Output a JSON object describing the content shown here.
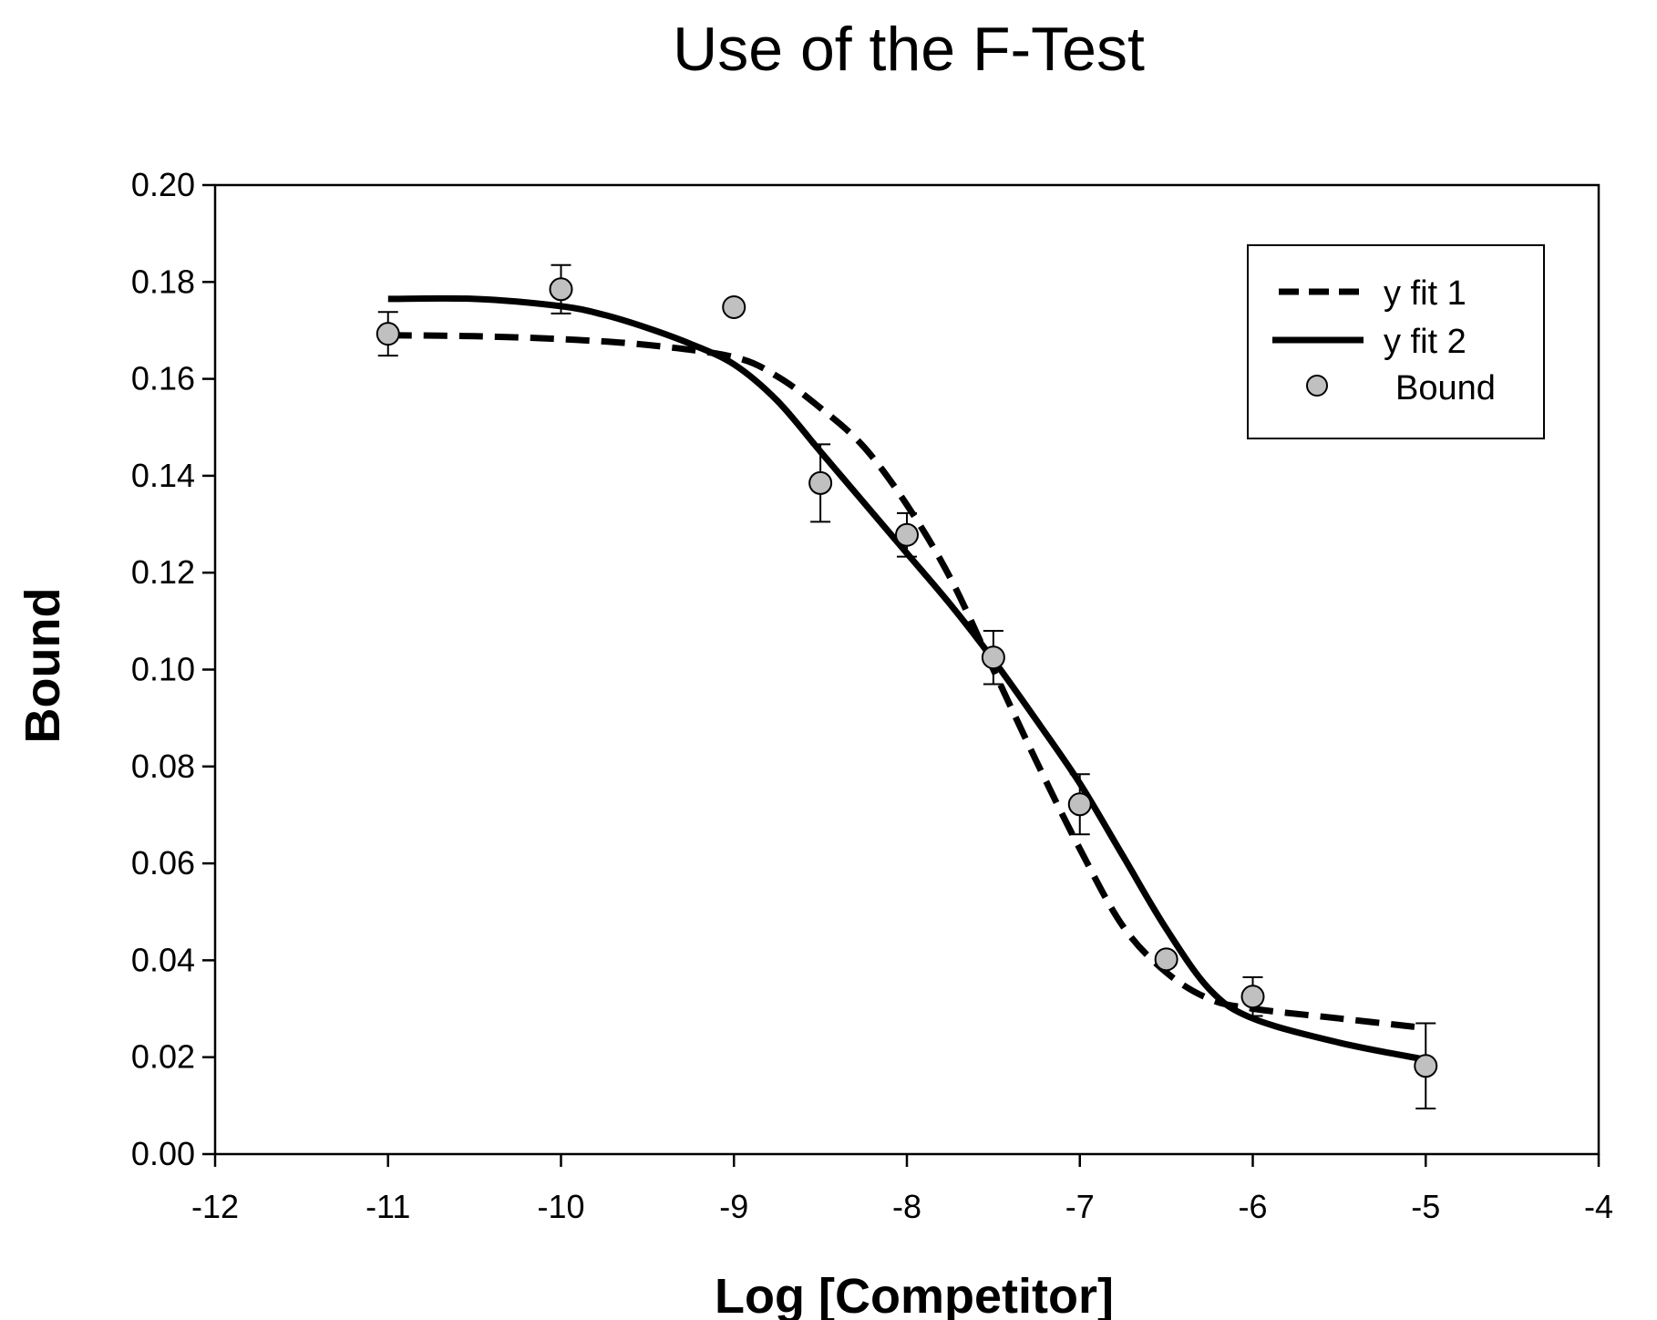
{
  "chart_data": {
    "type": "scatter",
    "title": "Use of the F-Test",
    "xlabel": "Log [Competitor]",
    "ylabel": "Bound",
    "xlim": [
      -12,
      -4
    ],
    "ylim": [
      0.0,
      0.2
    ],
    "x_ticks": [
      "-12",
      "-11",
      "-10",
      "-9",
      "-8",
      "-7",
      "-6",
      "-5",
      "-4"
    ],
    "y_ticks": [
      "0.00",
      "0.02",
      "0.04",
      "0.06",
      "0.08",
      "0.10",
      "0.12",
      "0.14",
      "0.16",
      "0.18",
      "0.20"
    ],
    "grid": false,
    "legend_position": "top-right",
    "series": [
      {
        "name": "y fit 1",
        "kind": "line",
        "style": "dashed",
        "color": "#000000",
        "x": [
          -11,
          -10.5,
          -10,
          -9.5,
          -9,
          -8.75,
          -8.5,
          -8.25,
          -8,
          -7.75,
          -7.5,
          -7.25,
          -7,
          -6.75,
          -6.5,
          -6.25,
          -6,
          -5.5,
          -5
        ],
        "y": [
          0.169,
          0.1688,
          0.1682,
          0.167,
          0.1645,
          0.1605,
          0.154,
          0.146,
          0.134,
          0.119,
          0.1,
          0.081,
          0.063,
          0.047,
          0.0375,
          0.032,
          0.03,
          0.028,
          0.026
        ]
      },
      {
        "name": "y fit 2",
        "kind": "line",
        "style": "solid",
        "color": "#000000",
        "x": [
          -11,
          -10.5,
          -10,
          -9.75,
          -9.5,
          -9.25,
          -9,
          -8.75,
          -8.5,
          -8.25,
          -8,
          -7.75,
          -7.5,
          -7.25,
          -7,
          -6.75,
          -6.5,
          -6.25,
          -6,
          -5.5,
          -5
        ],
        "y": [
          0.1765,
          0.1765,
          0.175,
          0.1732,
          0.1705,
          0.1672,
          0.163,
          0.1555,
          0.145,
          0.1345,
          0.124,
          0.1135,
          0.102,
          0.0895,
          0.0765,
          0.0615,
          0.0465,
          0.034,
          0.028,
          0.023,
          0.0195
        ]
      },
      {
        "name": "Bound",
        "kind": "scatter",
        "marker": "circle",
        "fill": "#c0c0c0",
        "stroke": "#000000",
        "x": [
          -11,
          -10,
          -9,
          -8.5,
          -8,
          -7.5,
          -7,
          -6.5,
          -6,
          -5
        ],
        "y": [
          0.1693,
          0.1785,
          0.1748,
          0.1385,
          0.1278,
          0.1025,
          0.0722,
          0.0402,
          0.0325,
          0.0182
        ],
        "error": [
          0.0045,
          0.005,
          0,
          0.008,
          0.0045,
          0.0055,
          0.0062,
          0.0012,
          0.004,
          0.0088
        ]
      }
    ]
  }
}
